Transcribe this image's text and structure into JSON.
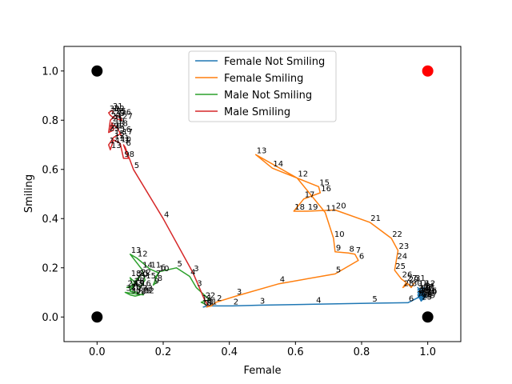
{
  "chart_data": {
    "type": "line",
    "title": "",
    "xlabel": "Female",
    "ylabel": "Smiling",
    "xlim": [
      -0.1,
      1.1
    ],
    "ylim": [
      -0.1,
      1.1
    ],
    "xticks": [
      "0.0",
      "0.2",
      "0.4",
      "0.6",
      "0.8",
      "1.0"
    ],
    "xtick_values": [
      0.0,
      0.2,
      0.4,
      0.6,
      0.8,
      1.0
    ],
    "yticks": [
      "0.0",
      "0.2",
      "0.4",
      "0.6",
      "0.8",
      "1.0"
    ],
    "ytick_values": [
      0.0,
      0.2,
      0.4,
      0.6,
      0.8,
      1.0
    ],
    "grid": false,
    "legend_position": "top-center",
    "corner_markers": [
      {
        "x": 0,
        "y": 1,
        "color": "#000000"
      },
      {
        "x": 1,
        "y": 1,
        "color": "#ff0000"
      },
      {
        "x": 0,
        "y": 0,
        "color": "#000000"
      },
      {
        "x": 1,
        "y": 0,
        "color": "#000000"
      }
    ],
    "series": [
      {
        "name": "Female Not Smiling",
        "color": "#1f77b4",
        "points": [
          [
            0.32,
            0.04,
            "0"
          ],
          [
            0.335,
            0.045,
            "1"
          ],
          [
            0.41,
            0.045,
            "2"
          ],
          [
            0.49,
            0.048,
            "3"
          ],
          [
            0.66,
            0.052,
            "4"
          ],
          [
            0.83,
            0.056,
            "5"
          ],
          [
            0.94,
            0.058,
            "6"
          ],
          [
            0.965,
            0.075,
            "7"
          ],
          [
            0.99,
            0.09,
            "8"
          ],
          [
            0.97,
            0.08,
            "9"
          ],
          [
            0.985,
            0.1,
            "10"
          ],
          [
            0.97,
            0.11,
            "11"
          ],
          [
            0.99,
            0.12,
            "12"
          ],
          [
            0.975,
            0.1,
            "13"
          ],
          [
            0.99,
            0.085,
            "14"
          ],
          [
            0.98,
            0.07,
            "15"
          ],
          [
            0.995,
            0.09,
            "16"
          ],
          [
            0.98,
            0.1,
            "17"
          ],
          [
            0.97,
            0.12,
            "18"
          ],
          [
            0.985,
            0.08,
            "19"
          ],
          [
            0.975,
            0.09,
            "20"
          ],
          [
            0.99,
            0.11,
            "21"
          ],
          [
            0.98,
            0.075,
            "22"
          ],
          [
            0.97,
            0.1,
            "23"
          ],
          [
            0.995,
            0.085,
            "24"
          ],
          [
            0.98,
            0.065,
            "25"
          ],
          [
            0.97,
            0.09,
            "26"
          ],
          [
            0.985,
            0.105,
            "27"
          ],
          [
            0.975,
            0.08,
            "28"
          ],
          [
            0.99,
            0.07,
            "29"
          ]
        ]
      },
      {
        "name": "Female Smiling",
        "color": "#ff7f0e",
        "points": [
          [
            0.33,
            0.04,
            "0"
          ],
          [
            0.345,
            0.045,
            "1"
          ],
          [
            0.36,
            0.06,
            "2"
          ],
          [
            0.42,
            0.085,
            "3"
          ],
          [
            0.55,
            0.135,
            "4"
          ],
          [
            0.72,
            0.175,
            "5"
          ],
          [
            0.79,
            0.23,
            "6"
          ],
          [
            0.78,
            0.255,
            "7"
          ],
          [
            0.76,
            0.26,
            "8"
          ],
          [
            0.72,
            0.265,
            "9"
          ],
          [
            0.715,
            0.32,
            "10"
          ],
          [
            0.69,
            0.425,
            "11"
          ],
          [
            0.605,
            0.565,
            "12"
          ],
          [
            0.48,
            0.66,
            "13"
          ],
          [
            0.53,
            0.605,
            "14"
          ],
          [
            0.67,
            0.53,
            "15"
          ],
          [
            0.675,
            0.505,
            "16"
          ],
          [
            0.625,
            0.48,
            "17"
          ],
          [
            0.595,
            0.43,
            "18"
          ],
          [
            0.635,
            0.43,
            "19"
          ],
          [
            0.72,
            0.435,
            "20"
          ],
          [
            0.825,
            0.385,
            "21"
          ],
          [
            0.89,
            0.32,
            "22"
          ],
          [
            0.91,
            0.27,
            "23"
          ],
          [
            0.905,
            0.23,
            "24"
          ],
          [
            0.9,
            0.19,
            "25"
          ],
          [
            0.92,
            0.155,
            "26"
          ],
          [
            0.935,
            0.14,
            "27"
          ],
          [
            0.925,
            0.12,
            "28"
          ],
          [
            0.94,
            0.135,
            "29"
          ],
          [
            0.95,
            0.12,
            "30"
          ],
          [
            0.96,
            0.14,
            "31"
          ]
        ]
      },
      {
        "name": "Male Not Smiling",
        "color": "#2ca02c",
        "points": [
          [
            0.33,
            0.05,
            "0"
          ],
          [
            0.315,
            0.06,
            "1"
          ],
          [
            0.34,
            0.07,
            "2"
          ],
          [
            0.3,
            0.12,
            "3"
          ],
          [
            0.28,
            0.165,
            "4"
          ],
          [
            0.24,
            0.2,
            "5"
          ],
          [
            0.19,
            0.185,
            "6"
          ],
          [
            0.175,
            0.16,
            "7"
          ],
          [
            0.18,
            0.14,
            "8"
          ],
          [
            0.17,
            0.13,
            "9"
          ],
          [
            0.185,
            0.18,
            "10"
          ],
          [
            0.16,
            0.195,
            "11"
          ],
          [
            0.12,
            0.24,
            "12"
          ],
          [
            0.1,
            0.255,
            "13"
          ],
          [
            0.135,
            0.195,
            "14"
          ],
          [
            0.145,
            0.15,
            "15"
          ],
          [
            0.13,
            0.12,
            "16"
          ],
          [
            0.115,
            0.14,
            "17"
          ],
          [
            0.1,
            0.16,
            "18"
          ],
          [
            0.11,
            0.12,
            "19"
          ],
          [
            0.12,
            0.155,
            "20"
          ],
          [
            0.125,
            0.16,
            "21"
          ],
          [
            0.13,
            0.165,
            "22"
          ],
          [
            0.105,
            0.12,
            "23"
          ],
          [
            0.09,
            0.12,
            "24"
          ],
          [
            0.11,
            0.13,
            "25"
          ],
          [
            0.1,
            0.105,
            "26"
          ],
          [
            0.12,
            0.1,
            "27"
          ],
          [
            0.13,
            0.09,
            "28"
          ],
          [
            0.115,
            0.085,
            "29"
          ],
          [
            0.1,
            0.09,
            "30"
          ],
          [
            0.085,
            0.1,
            "31"
          ],
          [
            0.14,
            0.09,
            "32"
          ],
          [
            0.135,
            0.1,
            "33"
          ]
        ]
      },
      {
        "name": "Male Smiling",
        "color": "#d62728",
        "points": [
          [
            0.335,
            0.045,
            "0"
          ],
          [
            0.33,
            0.06,
            "1"
          ],
          [
            0.325,
            0.07,
            "2"
          ],
          [
            0.29,
            0.18,
            "3"
          ],
          [
            0.2,
            0.4,
            "4"
          ],
          [
            0.11,
            0.6,
            "5"
          ],
          [
            0.085,
            0.69,
            "6"
          ],
          [
            0.08,
            0.7,
            "7"
          ],
          [
            0.095,
            0.645,
            "8"
          ],
          [
            0.08,
            0.645,
            "9"
          ],
          [
            0.07,
            0.705,
            "10"
          ],
          [
            0.065,
            0.71,
            "11"
          ],
          [
            0.05,
            0.72,
            "12"
          ],
          [
            0.04,
            0.68,
            "13"
          ],
          [
            0.035,
            0.7,
            "14"
          ],
          [
            0.05,
            0.73,
            "15"
          ],
          [
            0.07,
            0.745,
            "16"
          ],
          [
            0.075,
            0.735,
            "17"
          ],
          [
            0.06,
            0.77,
            "18"
          ],
          [
            0.05,
            0.78,
            "19"
          ],
          [
            0.04,
            0.76,
            "20"
          ],
          [
            0.045,
            0.79,
            "21"
          ],
          [
            0.05,
            0.76,
            "22"
          ],
          [
            0.035,
            0.75,
            "23"
          ],
          [
            0.04,
            0.8,
            "24"
          ],
          [
            0.055,
            0.82,
            "25"
          ],
          [
            0.07,
            0.815,
            "26"
          ],
          [
            0.075,
            0.8,
            "27"
          ],
          [
            0.05,
            0.81,
            "28"
          ],
          [
            0.04,
            0.82,
            "29"
          ],
          [
            0.035,
            0.83,
            "30"
          ],
          [
            0.045,
            0.84,
            "31"
          ],
          [
            0.05,
            0.83,
            "32"
          ]
        ]
      }
    ]
  }
}
